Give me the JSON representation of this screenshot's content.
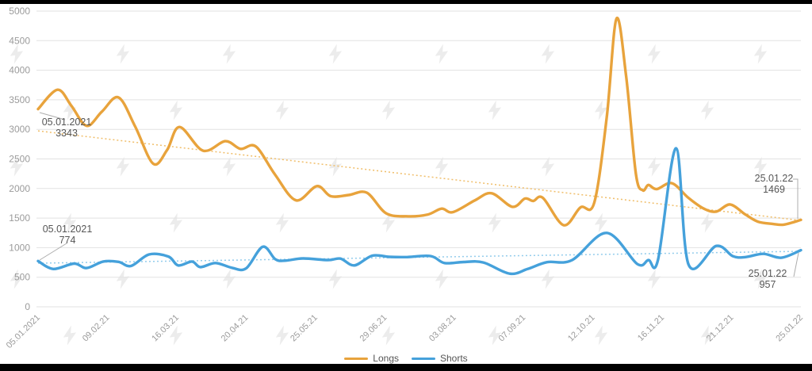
{
  "chart_data": {
    "type": "line",
    "title": "",
    "ylim": [
      0,
      5000
    ],
    "y_tick_values": [
      0,
      500,
      1000,
      1500,
      2000,
      2500,
      3000,
      3500,
      4000,
      4500,
      5000
    ],
    "x_tick_labels": [
      "05.01.2021",
      "09.02.21",
      "16.03.21",
      "20.04.21",
      "25.05.21",
      "29.06.21",
      "03.08.21",
      "07.09.21",
      "12.10.21",
      "16.11.21",
      "21.12.21",
      "25.01.22"
    ],
    "x_unit": "weeks since 05.01.2021 (ticks every 5 weeks)",
    "grid": "horizontal",
    "legend_position": "bottom-center",
    "series": [
      {
        "name": "Longs",
        "color": "#E8A33C",
        "points": [
          [
            0,
            3343
          ],
          [
            1.4,
            3670
          ],
          [
            2.4,
            3400
          ],
          [
            3.5,
            3060
          ],
          [
            4.6,
            3300
          ],
          [
            5.8,
            3540
          ],
          [
            7,
            3050
          ],
          [
            8.3,
            2420
          ],
          [
            9.3,
            2650
          ],
          [
            10.2,
            3040
          ],
          [
            11.9,
            2640
          ],
          [
            13.5,
            2800
          ],
          [
            14.6,
            2670
          ],
          [
            15.7,
            2710
          ],
          [
            17.1,
            2230
          ],
          [
            18.6,
            1800
          ],
          [
            20.1,
            2040
          ],
          [
            21.1,
            1870
          ],
          [
            22.4,
            1890
          ],
          [
            23.7,
            1930
          ],
          [
            25.1,
            1580
          ],
          [
            26.7,
            1530
          ],
          [
            28.1,
            1560
          ],
          [
            29.1,
            1660
          ],
          [
            29.9,
            1600
          ],
          [
            31.5,
            1800
          ],
          [
            32.7,
            1920
          ],
          [
            34.2,
            1690
          ],
          [
            35.1,
            1830
          ],
          [
            35.7,
            1790
          ],
          [
            36.4,
            1840
          ],
          [
            37.9,
            1380
          ],
          [
            39.1,
            1680
          ],
          [
            40.1,
            1760
          ],
          [
            41,
            3200
          ],
          [
            41.7,
            4870
          ],
          [
            42.4,
            3900
          ],
          [
            43.1,
            2250
          ],
          [
            43.6,
            1970
          ],
          [
            44,
            2060
          ],
          [
            44.6,
            1990
          ],
          [
            45.7,
            2090
          ],
          [
            46.9,
            1840
          ],
          [
            48,
            1660
          ],
          [
            48.9,
            1610
          ],
          [
            49.9,
            1730
          ],
          [
            51,
            1560
          ],
          [
            51.9,
            1440
          ],
          [
            53,
            1400
          ],
          [
            53.8,
            1390
          ],
          [
            55,
            1469
          ]
        ]
      },
      {
        "name": "Shorts",
        "color": "#45A1DB",
        "points": [
          [
            0,
            774
          ],
          [
            1.1,
            640
          ],
          [
            2.6,
            730
          ],
          [
            3.5,
            655
          ],
          [
            4.7,
            765
          ],
          [
            5.8,
            760
          ],
          [
            6.7,
            690
          ],
          [
            8,
            885
          ],
          [
            9.4,
            850
          ],
          [
            10.1,
            700
          ],
          [
            11.1,
            765
          ],
          [
            11.7,
            672
          ],
          [
            12.8,
            740
          ],
          [
            14,
            658
          ],
          [
            15,
            650
          ],
          [
            16.2,
            1015
          ],
          [
            17.1,
            805
          ],
          [
            17.8,
            780
          ],
          [
            19.1,
            818
          ],
          [
            20.9,
            790
          ],
          [
            21.8,
            815
          ],
          [
            22.8,
            700
          ],
          [
            24.1,
            865
          ],
          [
            25.3,
            845
          ],
          [
            26.5,
            840
          ],
          [
            28.3,
            858
          ],
          [
            29.3,
            740
          ],
          [
            30.7,
            758
          ],
          [
            32.1,
            750
          ],
          [
            34,
            560
          ],
          [
            35.3,
            640
          ],
          [
            36.7,
            755
          ],
          [
            38.5,
            790
          ],
          [
            41,
            1250
          ],
          [
            43.2,
            724
          ],
          [
            44,
            790
          ],
          [
            44.7,
            795
          ],
          [
            46,
            2680
          ],
          [
            46.9,
            715
          ],
          [
            48.9,
            1030
          ],
          [
            50.1,
            855
          ],
          [
            51,
            840
          ],
          [
            52.3,
            895
          ],
          [
            53.6,
            830
          ],
          [
            55,
            957
          ]
        ]
      }
    ],
    "trendlines": [
      {
        "series": "Longs",
        "color": "#F0BE6A",
        "start_value": 2975,
        "end_value": 1460
      },
      {
        "series": "Shorts",
        "color": "#92CCEC",
        "start_value": 737,
        "end_value": 938
      }
    ],
    "annotations": [
      {
        "id": "longs-start",
        "date": "05.01.2021",
        "value": "3343"
      },
      {
        "id": "shorts-start",
        "date": "05.01.2021",
        "value": "774"
      },
      {
        "id": "longs-end",
        "date": "25.01.22",
        "value": "1469"
      },
      {
        "id": "shorts-end",
        "date": "25.01.22",
        "value": "957"
      }
    ]
  },
  "colors": {
    "longs": "#E8A33C",
    "shorts": "#45A1DB",
    "longs_trend": "#F0BE6A",
    "shorts_trend": "#92CCEC",
    "gridline": "#E2E2E2",
    "axis_text": "#9B9B9B",
    "annotation_text": "#565656",
    "leader": "#ADADAD",
    "watermark": "#ECECEC",
    "frame_bar": "#000000",
    "background": "#FFFFFF"
  }
}
